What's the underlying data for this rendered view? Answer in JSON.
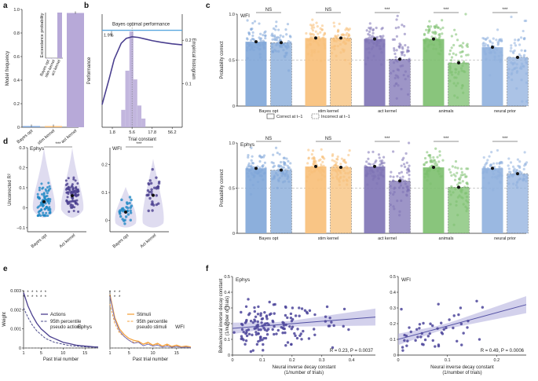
{
  "colors": {
    "bayes": "#7fa6d8",
    "stim": "#f8bf78",
    "act": "#7d72b5",
    "animals": "#7cbf6e",
    "neural": "#8fb0de",
    "dark_blue": "#1f88c4",
    "purple_dark": "#4a3f8f",
    "orange": "#f4a340",
    "bayes_line": "#5aa7df",
    "hist": "#b7a9d8",
    "reg_line": "#5250a3"
  },
  "panels": {
    "a": "a",
    "b": "b",
    "c": "c",
    "d": "d",
    "e": "e",
    "f": "f"
  },
  "chart_data": [
    {
      "id": "a",
      "type": "bar",
      "categories": [
        "Bayes opt",
        "stim kernel",
        "act kernel"
      ],
      "values": [
        0.01,
        0.01,
        0.97
      ],
      "ylabel": "Model frequency",
      "ylim": [
        0,
        1
      ],
      "yticks": [
        "0",
        "0.2",
        "0.4",
        "0.6",
        "0.8",
        "1.0"
      ],
      "inset": {
        "type": "bar",
        "categories": [
          "Bayes opt",
          "stim kernel",
          "act kernel"
        ],
        "values": [
          0.0,
          0.0,
          1.0
        ],
        "ylabel": "Exceedance probability"
      }
    },
    {
      "id": "b",
      "type": "line",
      "xlabel": "Trial constant",
      "ylabel": "Performance",
      "y2label": "Empirical histogram",
      "xticks": [
        "1.8",
        "5.6",
        "17.8",
        "56.2"
      ],
      "y2ticks": [
        "0.1",
        "0.2"
      ],
      "bayes_label": "Bayes optimal performance",
      "gap_label": "1.9%",
      "x": [
        1.0,
        1.5,
        2.0,
        3.0,
        4.0,
        5.6,
        8.0,
        12.0,
        17.8,
        30.0,
        56.2,
        100.0
      ],
      "y": [
        0.62,
        0.7,
        0.76,
        0.81,
        0.825,
        0.83,
        0.828,
        0.823,
        0.818,
        0.813,
        0.808,
        0.805
      ],
      "bayes_value": 0.85,
      "histogram": {
        "x": [
          3.0,
          3.8,
          4.8,
          6.0,
          7.6,
          9.6
        ],
        "values": [
          0.04,
          0.13,
          0.22,
          0.11,
          0.05,
          0.02
        ]
      }
    },
    {
      "id": "c-top",
      "type": "bar",
      "title": "WFI",
      "ylabel": "Probability correct",
      "ylim": [
        0,
        1
      ],
      "yticks": [
        "0",
        "0.5",
        "1.0"
      ],
      "groups": [
        "Bayes opt",
        "stim kernel",
        "act kernel",
        "animals",
        "neural prior"
      ],
      "correct": [
        0.7,
        0.74,
        0.73,
        0.73,
        0.64
      ],
      "incorrect": [
        0.69,
        0.74,
        0.51,
        0.47,
        0.53
      ],
      "significance": [
        "NS",
        "NS",
        "***",
        "***",
        "***"
      ],
      "legend": [
        "Correct at t−1",
        "Incorrect at t−1"
      ],
      "chance": 0.5
    },
    {
      "id": "c-bottom",
      "type": "bar",
      "title": "Ephys",
      "ylabel": "Probability correct",
      "ylim": [
        0,
        1
      ],
      "yticks": [
        "0",
        "0.5",
        "1.0"
      ],
      "groups": [
        "Bayes opt",
        "stim kernel",
        "act kernel",
        "animals",
        "neural prior"
      ],
      "correct": [
        0.72,
        0.74,
        0.74,
        0.73,
        0.72
      ],
      "incorrect": [
        0.7,
        0.73,
        0.58,
        0.51,
        0.66
      ],
      "significance": [
        "NS",
        "NS",
        "***",
        "***",
        "***"
      ],
      "chance": 0.5
    },
    {
      "id": "d-ephys",
      "type": "scatter",
      "title": "Ephys",
      "ylabel": "Uncorrected R²",
      "yticks": [
        "−0.1",
        "0",
        "0.1",
        "0.2",
        "0.3"
      ],
      "categories": [
        "Bayes opt",
        "Act kernel"
      ],
      "means": [
        0.03,
        0.06
      ],
      "significance": "***"
    },
    {
      "id": "d-wfi",
      "type": "scatter",
      "title": "WFI",
      "yticks": [
        "0",
        "0.1",
        "0.2"
      ],
      "categories": [
        "Bayes opt",
        "Act kernel"
      ],
      "means": [
        0.03,
        0.09
      ],
      "significance": "***"
    },
    {
      "id": "e-ephys",
      "type": "line",
      "title": "Ephys",
      "xlabel": "Past trial number",
      "ylabel": "Weight",
      "xticks": [
        "1",
        "5",
        "10",
        "15"
      ],
      "yticks": [
        "0",
        "0.001",
        "0.002",
        "0.003"
      ],
      "x": [
        1,
        2,
        3,
        4,
        5,
        6,
        7,
        8,
        9,
        10,
        11,
        12,
        13,
        14,
        15,
        16,
        17,
        18
      ],
      "series": [
        {
          "name": "Actions",
          "values": [
            0.0029,
            0.0022,
            0.0017,
            0.0013,
            0.001,
            0.0008,
            0.0006,
            0.0005,
            0.0004,
            0.0003,
            0.00025,
            0.0002,
            0.00015,
            0.00012,
            0.0001,
            8e-05,
            6e-05,
            5e-05
          ]
        },
        {
          "name": "95th percentile pseudo actions",
          "values": [
            0.0021,
            0.0016,
            0.0012,
            0.0009,
            0.0007,
            0.0005,
            0.0004,
            0.0003,
            0.00025,
            0.0002,
            0.00015,
            0.00012,
            0.0001,
            8e-05,
            6e-05,
            5e-05,
            4e-05,
            3e-05
          ]
        }
      ]
    },
    {
      "id": "e-wfi",
      "type": "line",
      "title": "WFI",
      "xlabel": "Past trial number",
      "xticks": [
        "1",
        "5",
        "10",
        "15"
      ],
      "x": [
        1,
        2,
        3,
        4,
        5,
        6,
        7,
        8,
        9,
        10,
        11,
        12,
        13,
        14,
        15,
        16,
        17,
        18
      ],
      "series": [
        {
          "name": "Stimuli",
          "values": [
            0.0028,
            0.0016,
            0.001,
            0.0007,
            0.0005,
            0.0004,
            0.00035,
            0.0002,
            0.0003,
            0.00015,
            0.00025,
            0.0001,
            0.0002,
            8e-05,
            0.00015,
            6e-05,
            0.0001,
            5e-05
          ]
        },
        {
          "name": "95th percentile pseudo stimuli",
          "values": [
            0.0023,
            0.0013,
            0.0008,
            0.0006,
            0.0004,
            0.0003,
            0.0003,
            0.0002,
            0.00025,
            0.00015,
            0.0002,
            0.0001,
            0.00015,
            8e-05,
            0.0001,
            6e-05,
            8e-05,
            5e-05
          ]
        }
      ]
    },
    {
      "id": "f-ephys",
      "type": "scatter",
      "title": "Ephys",
      "xlabel": "Neural inverse decay constant",
      "xlabel2": "(1/number of trials)",
      "ylabel": "Behavioural inverse decay constant",
      "ylabel2": "(1/number of trials)",
      "xticks": [
        "0",
        "0.1",
        "0.2",
        "0.3",
        "0.4"
      ],
      "yticks": [
        "0",
        "0.1",
        "0.2",
        "0.3",
        "0.4",
        "0.5"
      ],
      "stats": "R = 0.23,  P = 0.0037",
      "fit": {
        "intercept": 0.17,
        "slope": 0.15
      }
    },
    {
      "id": "f-wfi",
      "type": "scatter",
      "title": "WFI",
      "xticks": [
        "0",
        "0.1",
        "0.2"
      ],
      "stats": "R = 0.49,  P = 0.0006",
      "fit": {
        "intercept": 0.1,
        "slope": 0.85
      }
    }
  ]
}
